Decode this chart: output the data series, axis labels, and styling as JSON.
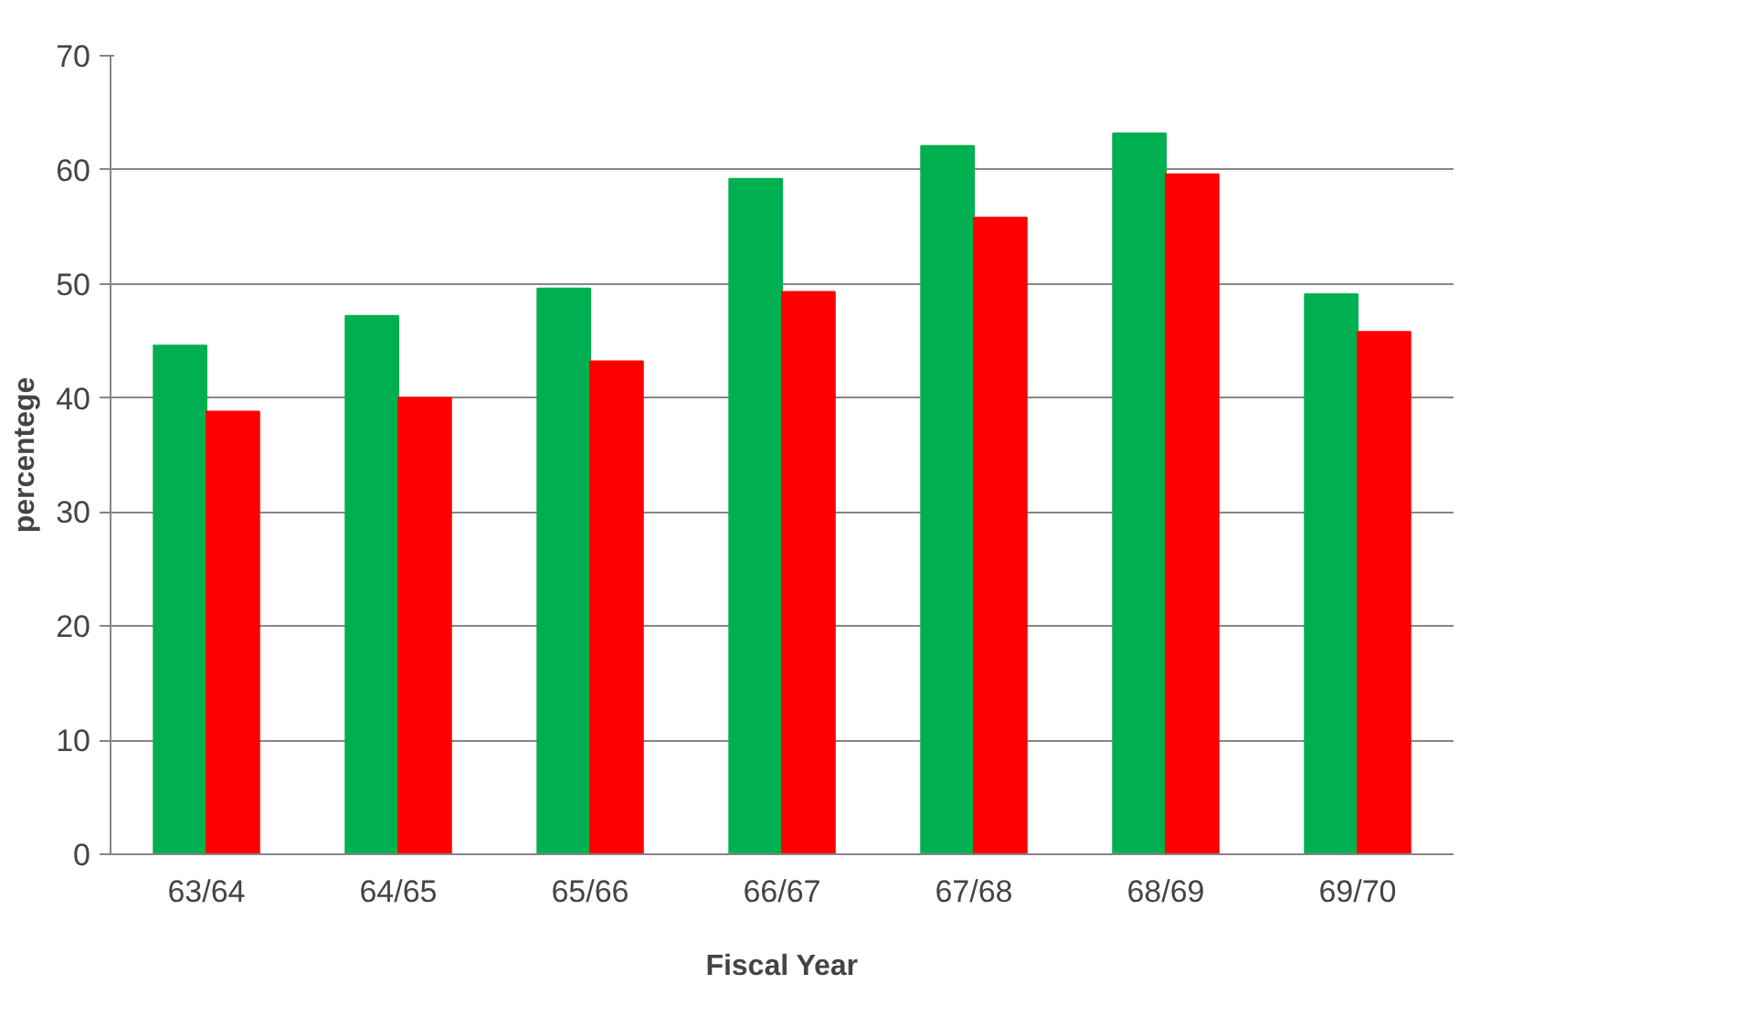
{
  "chart_data": {
    "type": "bar",
    "xlabel": "Fiscal Year",
    "ylabel": "percentege",
    "categories": [
      "63/64",
      "64/65",
      "65/66",
      "66/67",
      "67/68",
      "68/69",
      "69/70"
    ],
    "series": [
      {
        "color": "#00b050",
        "values": [
          44.6,
          47.2,
          49.6,
          59.2,
          62.1,
          63.2,
          49.1
        ]
      },
      {
        "color": "#ff0000",
        "values": [
          38.8,
          40.0,
          43.2,
          49.3,
          55.8,
          59.6,
          45.8
        ]
      }
    ],
    "ylim": [
      0,
      70
    ],
    "yticks": [
      0,
      10,
      20,
      30,
      40,
      50,
      60,
      70
    ],
    "grid": "y"
  }
}
